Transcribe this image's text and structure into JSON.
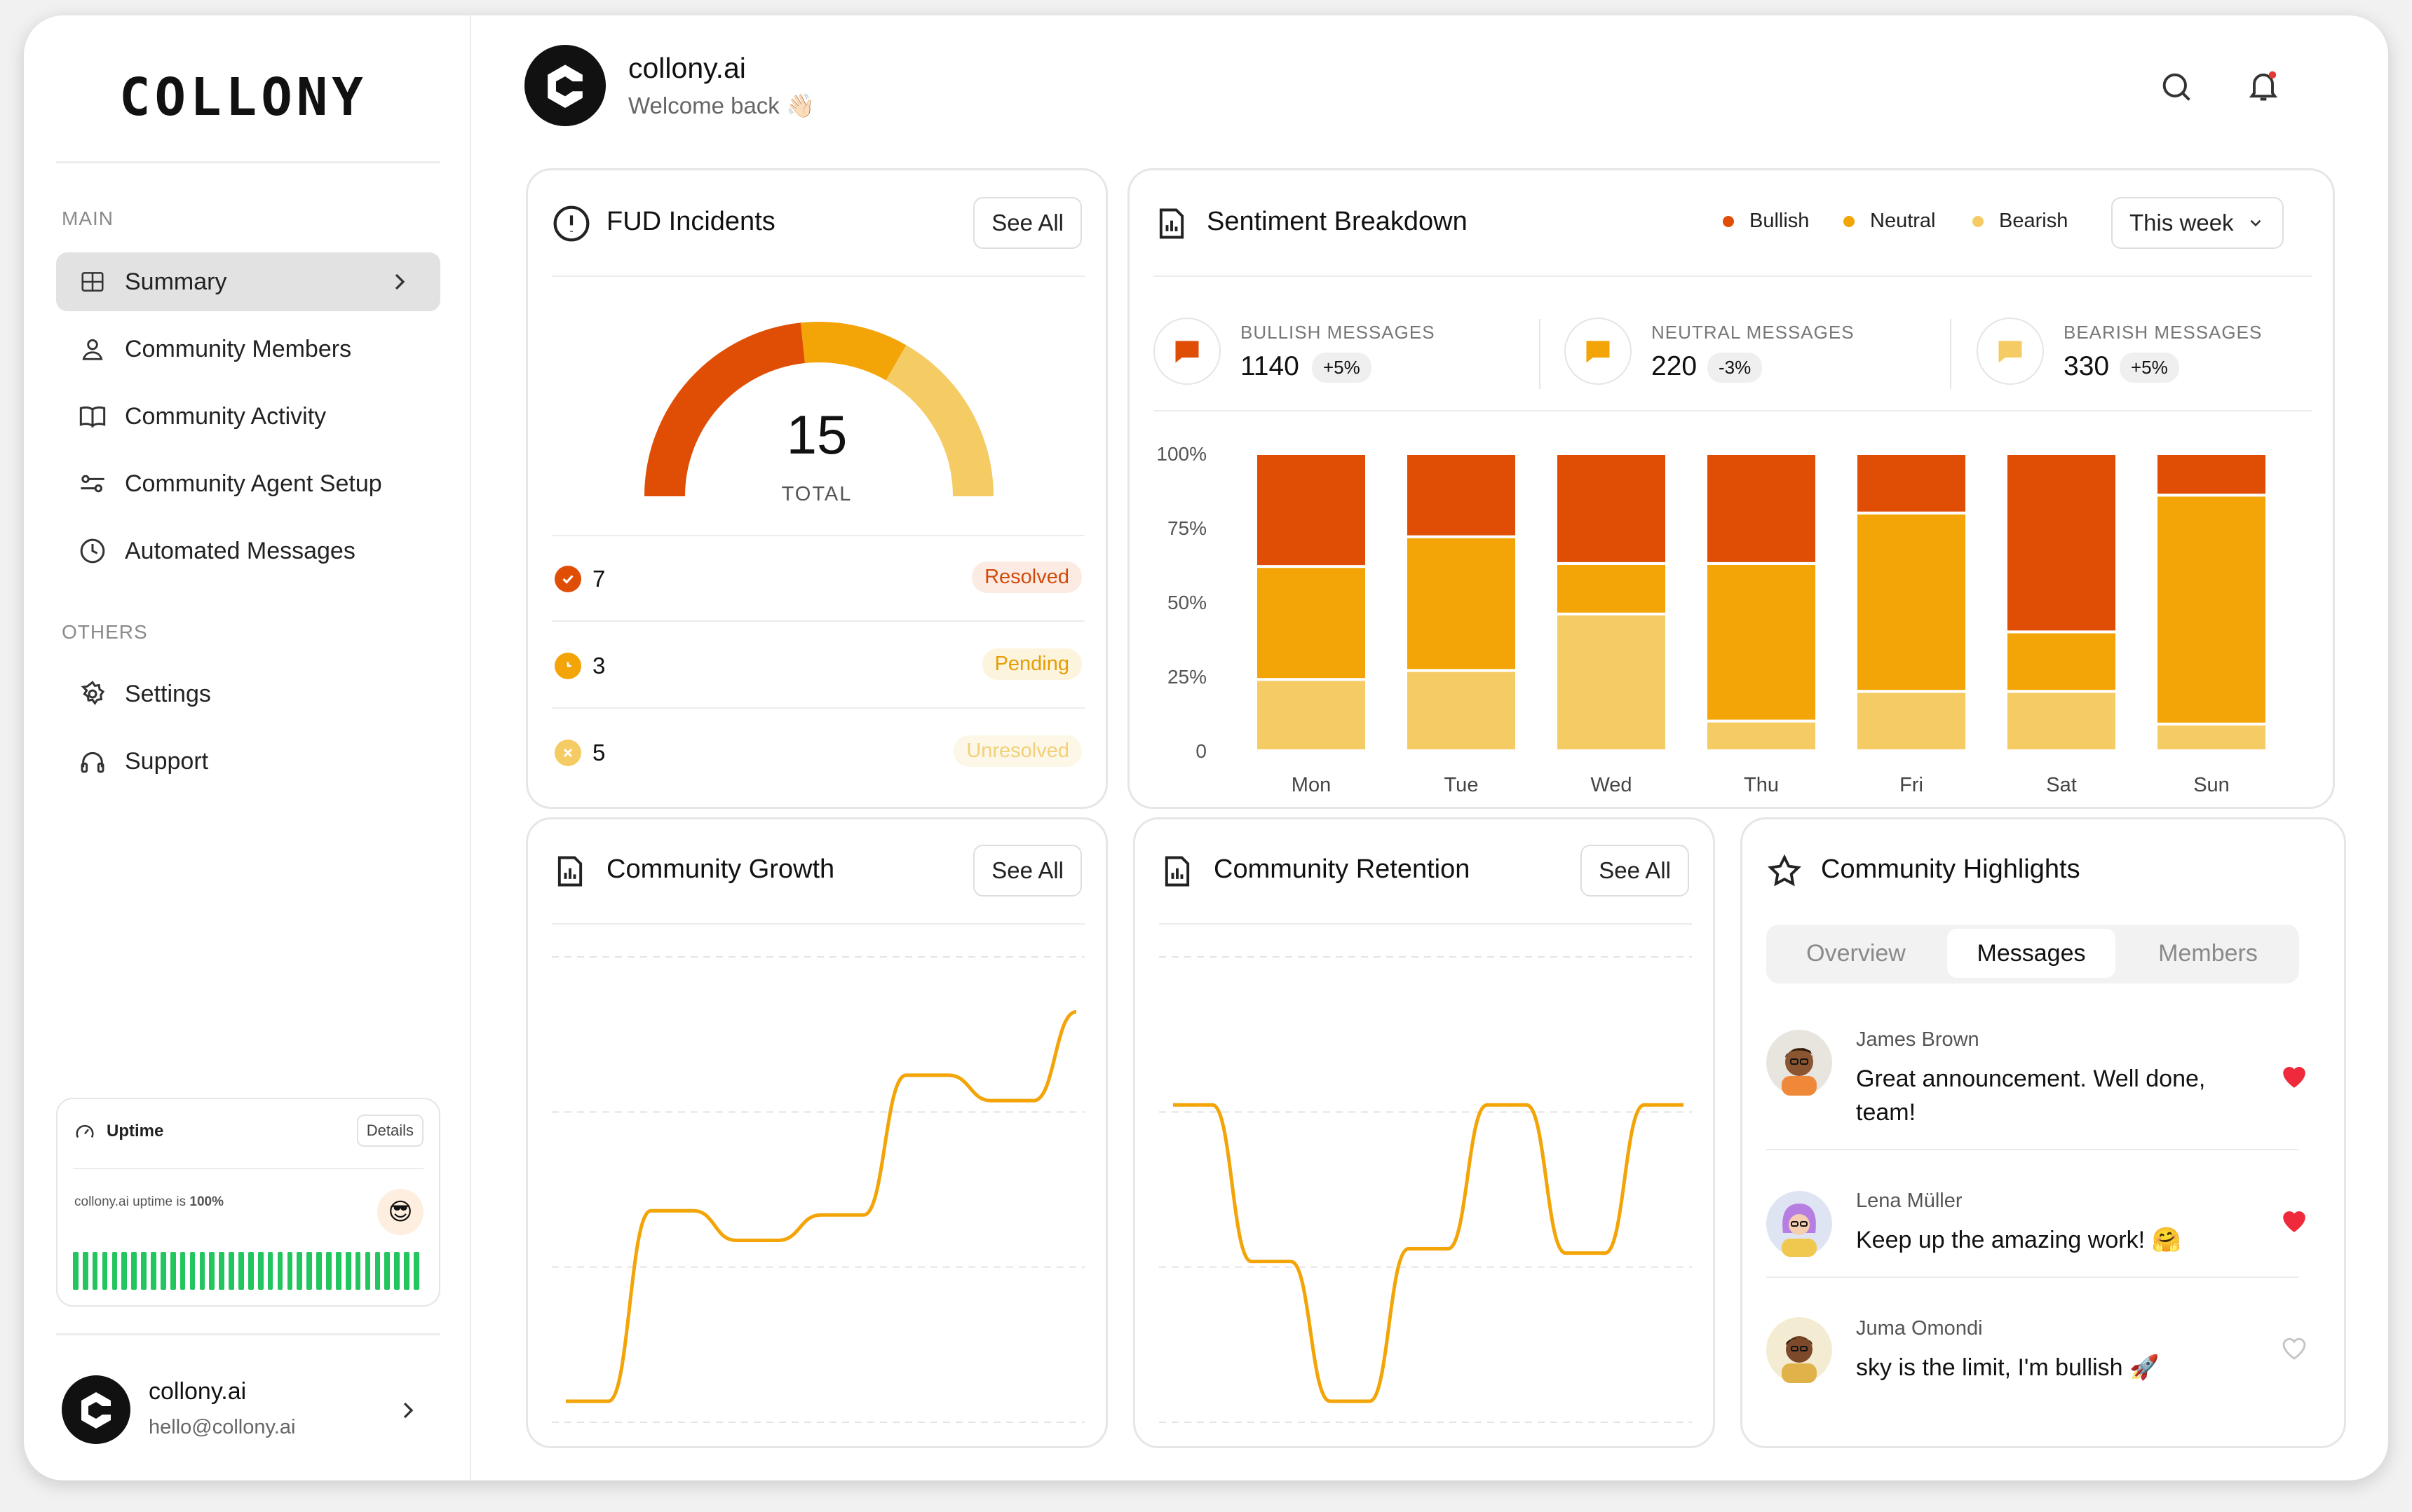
{
  "brand": {
    "logo_text": "COLLONY"
  },
  "header": {
    "title": "collony.ai",
    "subtitle": "Welcome back 👋🏻"
  },
  "sidebar": {
    "main_label": "MAIN",
    "items": [
      {
        "label": "Summary",
        "icon": "grid-icon",
        "active": true
      },
      {
        "label": "Community Members",
        "icon": "user-icon"
      },
      {
        "label": "Community Activity",
        "icon": "book-icon"
      },
      {
        "label": "Community Agent Setup",
        "icon": "sliders-icon"
      },
      {
        "label": "Automated Messages",
        "icon": "clock-icon"
      }
    ],
    "others_label": "OTHERS",
    "others": [
      {
        "label": "Settings",
        "icon": "gear-icon"
      },
      {
        "label": "Support",
        "icon": "headphones-icon"
      }
    ],
    "uptime": {
      "title": "Uptime",
      "details": "Details",
      "text_prefix": "collony.ai uptime is ",
      "text_value": "100%",
      "emoji": "😎",
      "bars": 36,
      "bar_color": "#22c55e"
    },
    "account": {
      "name": "collony.ai",
      "email": "hello@collony.ai"
    }
  },
  "fud": {
    "title": "FUD Incidents",
    "see_all": "See All",
    "total": "15",
    "total_label": "TOTAL",
    "rows": [
      {
        "count": "7",
        "status": "Resolved",
        "color": "#e04e06"
      },
      {
        "count": "3",
        "status": "Pending",
        "color": "#f3a406"
      },
      {
        "count": "5",
        "status": "Unresolved",
        "color": "#f5cb63"
      }
    ]
  },
  "sentiment": {
    "title": "Sentiment Breakdown",
    "legend": [
      {
        "label": "Bullish",
        "color": "#e04e06"
      },
      {
        "label": "Neutral",
        "color": "#f3a406"
      },
      {
        "label": "Bearish",
        "color": "#f5cb63"
      }
    ],
    "period": "This week",
    "stats": [
      {
        "label": "BULLISH MESSAGES",
        "value": "1140",
        "change": "+5%",
        "color": "#e04e06"
      },
      {
        "label": "NEUTRAL  MESSAGES",
        "value": "220",
        "change": "-3%",
        "color": "#f3a406"
      },
      {
        "label": "BEARISH  MESSAGES",
        "value": "330",
        "change": "+5%",
        "color": "#f5cb63"
      }
    ]
  },
  "chart_data": [
    {
      "type": "bar",
      "stacked": true,
      "categories": [
        "Mon",
        "Tue",
        "Wed",
        "Thu",
        "Fri",
        "Sat",
        "Sun"
      ],
      "series": [
        {
          "name": "Bearish",
          "color": "#f5cb63",
          "values": [
            24,
            27,
            46,
            10,
            20,
            20,
            9
          ]
        },
        {
          "name": "Neutral",
          "color": "#f3a406",
          "values": [
            38,
            45,
            17,
            53,
            60,
            20,
            77
          ]
        },
        {
          "name": "Bullish",
          "color": "#e04e06",
          "values": [
            38,
            28,
            37,
            37,
            20,
            60,
            14
          ]
        }
      ],
      "yticks": [
        "100%",
        "75%",
        "50%",
        "25%",
        "0"
      ],
      "ylim": [
        0,
        100
      ]
    },
    {
      "type": "line",
      "title": "Community Growth",
      "series": [
        {
          "values": [
            0,
            0,
            45,
            45,
            38,
            38,
            44,
            44,
            77,
            77,
            71,
            71,
            92
          ],
          "color": "#f3a406"
        }
      ],
      "ylim": [
        0,
        100
      ]
    },
    {
      "type": "line",
      "title": "Community Retention",
      "series": [
        {
          "values": [
            70,
            70,
            33,
            33,
            0,
            0,
            36,
            36,
            70,
            70,
            35,
            35,
            70,
            70
          ],
          "color": "#f3a406"
        }
      ],
      "ylim": [
        0,
        100
      ]
    }
  ],
  "growth": {
    "title": "Community Growth",
    "see_all": "See All"
  },
  "retention": {
    "title": "Community Retention",
    "see_all": "See All"
  },
  "highlights": {
    "title": "Community Highlights",
    "tabs": [
      "Overview",
      "Messages",
      "Members"
    ],
    "active_tab": "Messages",
    "messages": [
      {
        "name": "James Brown",
        "text": "Great announcement. Well done, team!",
        "liked": true
      },
      {
        "name": "Lena Müller",
        "text": "Keep up the amazing work! 🤗",
        "liked": true
      },
      {
        "name": "Juma Omondi",
        "text": "sky is the limit, I'm bullish 🚀",
        "liked": false
      }
    ]
  }
}
